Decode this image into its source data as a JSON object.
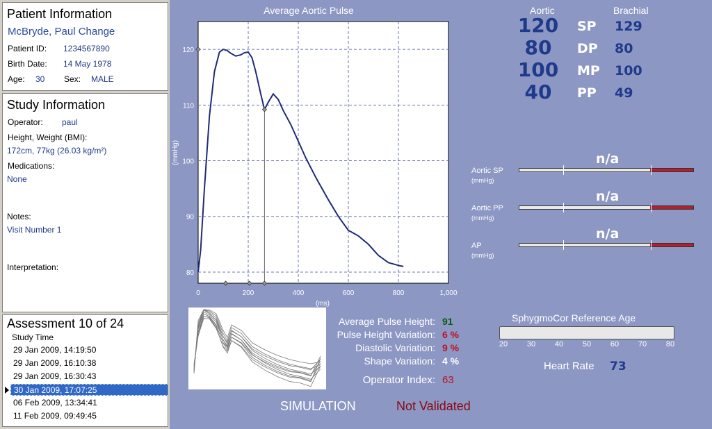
{
  "patient": {
    "title": "Patient Information",
    "name": "McBryde, Paul Change",
    "id_label": "Patient ID:",
    "id_value": "1234567890",
    "dob_label": "Birth Date:",
    "dob_value": "14 May 1978",
    "age_label": "Age:",
    "age_value": "30",
    "sex_label": "Sex:",
    "sex_value": "MALE"
  },
  "study": {
    "title": "Study Information",
    "operator_label": "Operator:",
    "operator_value": "paul",
    "hw_label": "Height, Weight (BMI):",
    "hw_value": "172cm, 77kg (26.03 kg/m²)",
    "med_label": "Medications:",
    "med_value": "None",
    "notes_label": "Notes:",
    "notes_value": "Visit Number 1",
    "interp_label": "Interpretation:"
  },
  "assessment": {
    "title": "Assessment 10 of 24",
    "col_header": "Study Time",
    "items": [
      {
        "label": "29 Jan 2009, 14:19:50"
      },
      {
        "label": "29 Jan 2009, 16:10:38"
      },
      {
        "label": "29 Jan 2009, 16:30:43"
      },
      {
        "label": "30 Jan 2009, 17:07:25"
      },
      {
        "label": "06 Feb 2009, 13:34:41"
      },
      {
        "label": "11 Feb 2009, 09:49:45"
      }
    ],
    "selected_index": 3
  },
  "chart_data": {
    "type": "line",
    "title": "Average Aortic Pulse",
    "xlabel": "(ms)",
    "ylabel": "(mmHg)",
    "xlim": [
      0,
      1000
    ],
    "ylim": [
      78,
      125
    ],
    "xticks": [
      "0",
      "200",
      "400",
      "600",
      "800",
      "1,000"
    ],
    "yticks": [
      "80",
      "90",
      "100",
      "110",
      "120"
    ],
    "grid": true,
    "series": [
      {
        "x": [
          0,
          10,
          25,
          45,
          65,
          85,
          100,
          115,
          130,
          150,
          170,
          185,
          200,
          215,
          230,
          250,
          265,
          280,
          300,
          320,
          340,
          370,
          400,
          430,
          470,
          520,
          560,
          600,
          640,
          680,
          720,
          760,
          800,
          820
        ],
        "y": [
          80,
          84,
          95,
          108,
          116,
          119.5,
          120,
          119.8,
          119.3,
          118.8,
          119,
          119.4,
          119.5,
          118.5,
          116,
          112,
          109.2,
          110.5,
          112,
          111,
          109,
          106.5,
          103.5,
          100.5,
          97,
          93,
          90,
          87.5,
          86.5,
          85,
          83,
          81.7,
          81.2,
          81
        ]
      }
    ],
    "markers_x": [
      110,
      205,
      265
    ],
    "vline_x": 265
  },
  "bp": {
    "aortic_header": "Aortic",
    "brachial_header": "Brachial",
    "rows": [
      {
        "label": "SP",
        "aortic": "120",
        "brachial": "129"
      },
      {
        "label": "DP",
        "aortic": "80",
        "brachial": "80"
      },
      {
        "label": "MP",
        "aortic": "100",
        "brachial": "100"
      },
      {
        "label": "PP",
        "aortic": "40",
        "brachial": "49"
      }
    ]
  },
  "gauges": [
    {
      "label": "Aortic SP",
      "unit": "(mmHg)",
      "value": "n/a"
    },
    {
      "label": "Aortic PP",
      "unit": "(mmHg)",
      "value": "n/a"
    },
    {
      "label": "AP",
      "unit": "(mmHg)",
      "value": "n/a"
    }
  ],
  "quality": {
    "pulse_height_label": "Average Pulse Height:",
    "pulse_height_value": "91",
    "phv_label": "Pulse Height Variation:",
    "phv_value": "6 %",
    "dv_label": "Diastolic Variation:",
    "dv_value": "9 %",
    "sv_label": "Shape Variation:",
    "sv_value": "4 %",
    "oi_label": "Operator Index:",
    "oi_value": "63",
    "colors": {
      "good": "#0a5a0a",
      "bad": "#c01020",
      "neutral": "#ffffff"
    }
  },
  "ref_age": {
    "title": "SphygmoCor Reference Age",
    "ticks": [
      "20",
      "30",
      "40",
      "50",
      "60",
      "70",
      "80"
    ]
  },
  "heart_rate": {
    "label": "Heart Rate",
    "value": "73"
  },
  "status": {
    "simulation": "SIMULATION",
    "validation": "Not Validated"
  }
}
